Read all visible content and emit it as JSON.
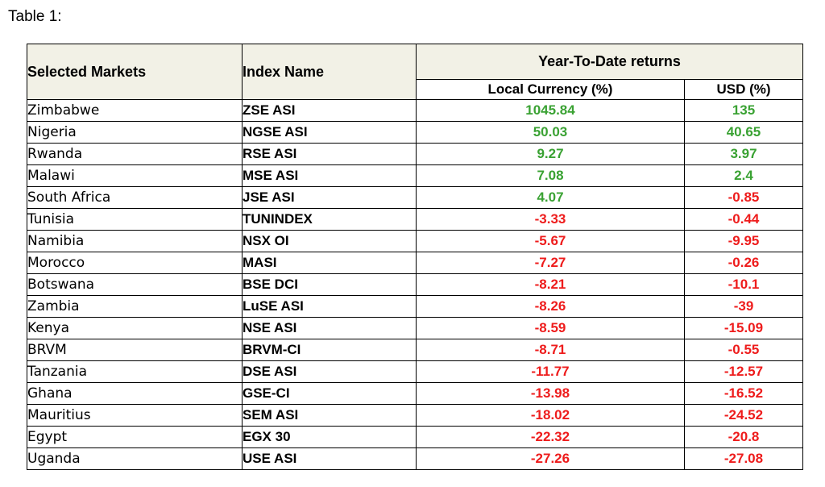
{
  "caption": "Table 1:",
  "headers": {
    "market": "Selected Markets",
    "index": "Index Name",
    "ytd": "Year-To-Date returns",
    "local": "Local Currency (%)",
    "usd": "USD (%)"
  },
  "colors": {
    "positive": "#3aa233",
    "negative": "#ee1c1c",
    "header_bg": "#f2f1e6"
  },
  "rows": [
    {
      "market": "Zimbabwe",
      "index": "ZSE ASI",
      "local": "1045.84",
      "usd": "135"
    },
    {
      "market": "Nigeria",
      "index": "NGSE ASI",
      "local": "50.03",
      "usd": "40.65"
    },
    {
      "market": "Rwanda",
      "index": "RSE ASI",
      "local": "9.27",
      "usd": "3.97"
    },
    {
      "market": "Malawi",
      "index": "MSE ASI",
      "local": "7.08",
      "usd": "2.4"
    },
    {
      "market": "South Africa",
      "index": "JSE ASI",
      "local": "4.07",
      "usd": "-0.85"
    },
    {
      "market": "Tunisia",
      "index": "TUNINDEX",
      "local": "-3.33",
      "usd": "-0.44"
    },
    {
      "market": "Namibia",
      "index": "NSX OI",
      "local": "-5.67",
      "usd": "-9.95"
    },
    {
      "market": "Morocco",
      "index": "MASI",
      "local": "-7.27",
      "usd": "-0.26"
    },
    {
      "market": "Botswana",
      "index": "BSE DCI",
      "local": "-8.21",
      "usd": "-10.1"
    },
    {
      "market": "Zambia",
      "index": "LuSE ASI",
      "local": "-8.26",
      "usd": "-39"
    },
    {
      "market": "Kenya",
      "index": "NSE ASI",
      "local": "-8.59",
      "usd": "-15.09"
    },
    {
      "market": "BRVM",
      "index": "BRVM-CI",
      "local": "-8.71",
      "usd": "-0.55"
    },
    {
      "market": "Tanzania",
      "index": "DSE ASI",
      "local": "-11.77",
      "usd": "-12.57"
    },
    {
      "market": "Ghana",
      "index": "GSE-CI",
      "local": "-13.98",
      "usd": "-16.52"
    },
    {
      "market": "Mauritius",
      "index": "SEM ASI",
      "local": "-18.02",
      "usd": "-24.52"
    },
    {
      "market": "Egypt",
      "index": "EGX 30",
      "local": "-22.32",
      "usd": "-20.8"
    },
    {
      "market": "Uganda",
      "index": "USE ASI",
      "local": "-27.26",
      "usd": "-27.08"
    }
  ]
}
